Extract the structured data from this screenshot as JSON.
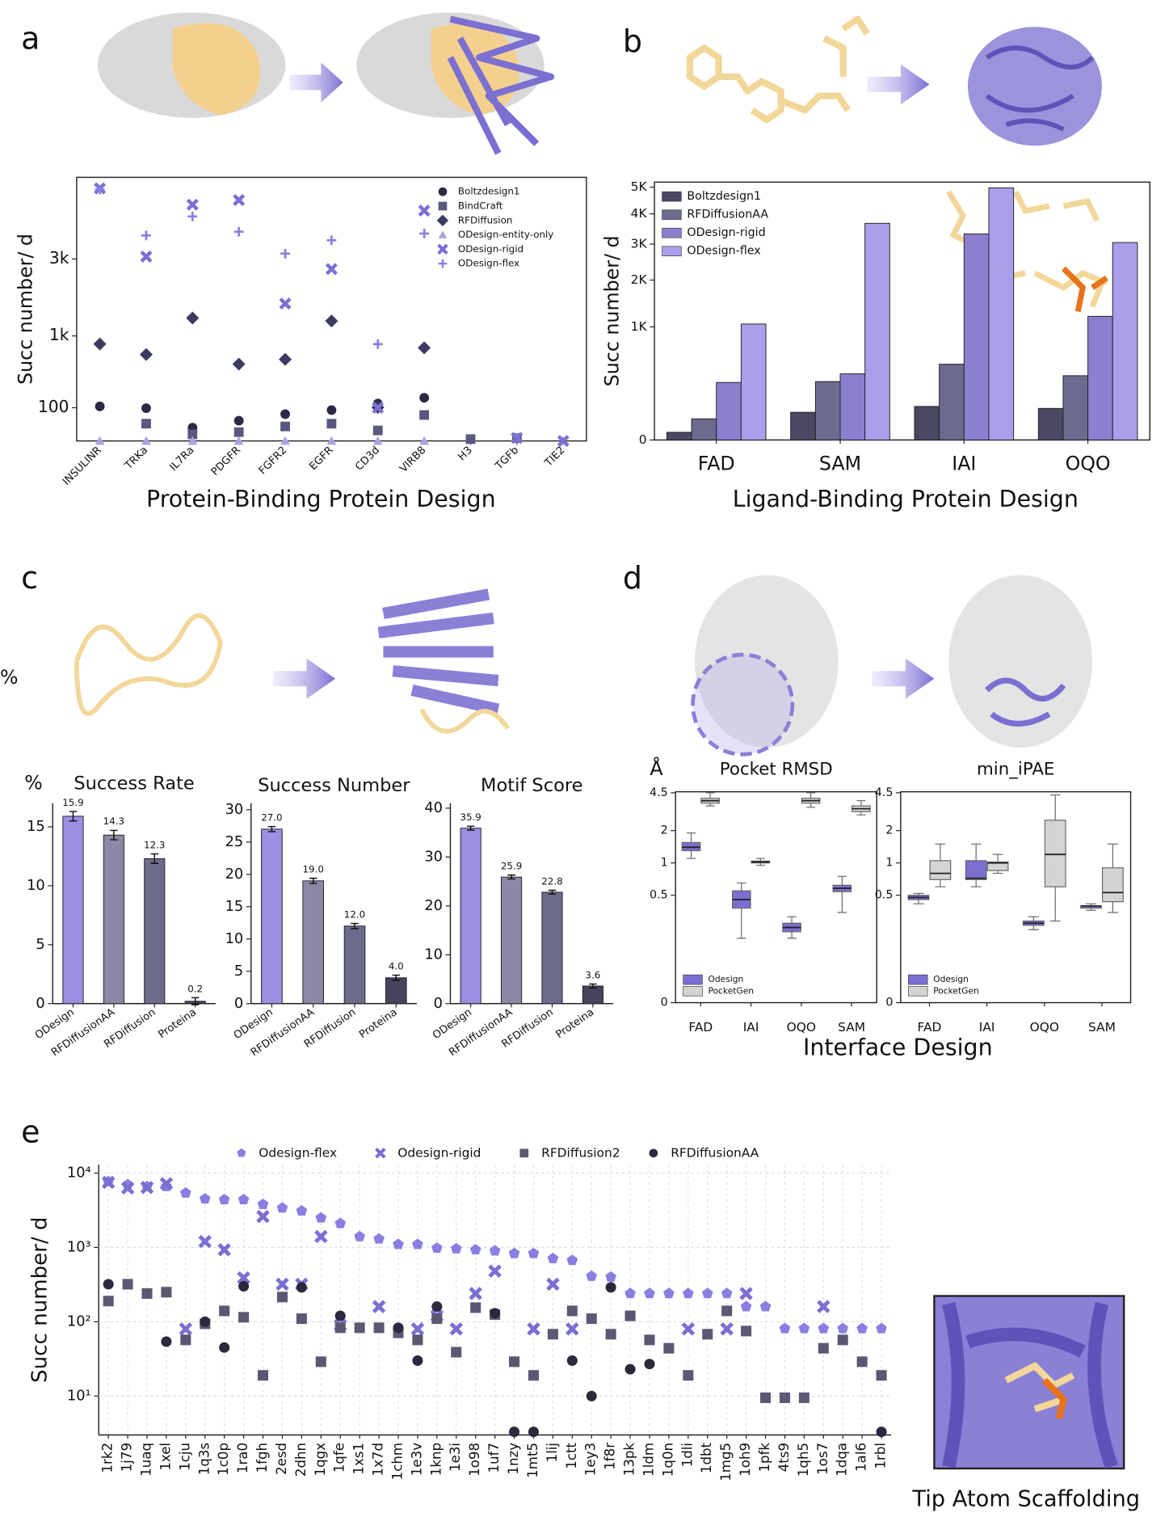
{
  "panels": [
    {
      "label": "a",
      "caption": "Protein-Binding Protein Design"
    },
    {
      "label": "b",
      "caption": "Ligand-Binding Protein Design"
    },
    {
      "label": "c"
    },
    {
      "label": "d",
      "caption": "Interface Design"
    },
    {
      "label": "e",
      "caption": "Tip Atom Scaffolding"
    }
  ],
  "annotations": [
    {
      "text": "%"
    }
  ],
  "chart_data": [
    {
      "type": "scatter",
      "ylabel": "Succ number/ d",
      "yscale": "sqrt",
      "legend": "upper right",
      "categories": [
        "INSULINR",
        "TRKa",
        "IL7Ra",
        "PDGFR",
        "FGFR2",
        "EGFR",
        "CD3d",
        "VIRB8",
        "H3",
        "TGFb",
        "TIE2"
      ],
      "ylim": [
        0,
        6300
      ],
      "yticks": [
        100,
        {
          "value": 1000,
          "label": "1k"
        },
        {
          "value": 3000,
          "label": "3k"
        }
      ],
      "series": [
        {
          "name": "Boltzdesign1",
          "color": "#2b2945",
          "marker": "circle",
          "values": [
            108,
            97,
            16,
            37,
            65,
            86,
            127,
            169,
            null,
            null,
            null
          ]
        },
        {
          "name": "BindCraft",
          "color": "#5a5880",
          "marker": "square",
          "values": [
            null,
            27,
            4,
            7,
            19,
            27,
            10,
            61,
            0.3,
            0.8,
            null
          ]
        },
        {
          "name": "RFDiffusion",
          "color": "#3d3a62",
          "marker": "diamond",
          "values": [
            852,
            677,
            1369,
            535,
            604,
            1305,
            102,
            786,
            null,
            null,
            null
          ]
        },
        {
          "name": "ODesign-entity-only",
          "color": "#aaa3e3",
          "marker": "triangle",
          "values": [
            0,
            0,
            0,
            0,
            0,
            0,
            0,
            0,
            null,
            1,
            0
          ]
        },
        {
          "name": "ODesign-rigid",
          "color": "#7b6fd2",
          "marker": "x",
          "values": [
            5780,
            3080,
            5060,
            5260,
            1710,
            2680,
            100,
            4810,
            null,
            0.8,
            0
          ]
        },
        {
          "name": "ODesign-flex",
          "color": "#8a7ee2",
          "marker": "plus",
          "values": [
            5730,
            3830,
            4570,
            3970,
            3180,
            3650,
            850,
            3900,
            null,
            null,
            null
          ]
        }
      ]
    },
    {
      "type": "bar",
      "ylabel": "Succ number/ d",
      "yscale": "sqrt",
      "legend": "upper left",
      "categories": [
        "FAD",
        "SAM",
        "IAI",
        "OQO"
      ],
      "ylim": [
        0,
        5200
      ],
      "yticks": [
        0,
        {
          "value": 1000,
          "label": "1K"
        },
        {
          "value": 2000,
          "label": "2K"
        },
        {
          "value": 3000,
          "label": "3K"
        },
        {
          "value": 4000,
          "label": "4K"
        },
        {
          "value": 5000,
          "label": "5K"
        }
      ],
      "series": [
        {
          "name": "Boltzdesign1",
          "color": "#4a4862",
          "values": [
            4.6,
            60,
            88,
            78
          ]
        },
        {
          "name": "RFDiffusionAA",
          "color": "#6c6a8e",
          "values": [
            35,
            267,
            449,
            323
          ]
        },
        {
          "name": "ODesign-rigid",
          "color": "#8a80cf",
          "values": [
            259,
            342,
            3322,
            1196
          ]
        },
        {
          "name": "ODesign-flex",
          "color": "#a99fea",
          "values": [
            1052,
            3671,
            4971,
            3050
          ]
        }
      ]
    },
    {
      "type": "bar",
      "title": "Success Rate",
      "ylabel": "%",
      "categories": [
        "ODesign",
        "RFDiffusionAA",
        "RFDiffusion",
        "Proteina"
      ],
      "colors": [
        "#9a8fe0",
        "#8b89a6",
        "#6d6b8c",
        "#45445c"
      ],
      "values": [
        15.9,
        14.3,
        12.3,
        0.2
      ],
      "errors": [
        0.4,
        0.4,
        0.4,
        0.3
      ],
      "ylim": [
        0,
        17
      ],
      "yticks": [
        0,
        5,
        10,
        15
      ]
    },
    {
      "type": "bar",
      "title": "Success Number",
      "categories": [
        "ODesign",
        "RFDiffusionAA",
        "RFDiffusion",
        "Proteina"
      ],
      "colors": [
        "#9a8fe0",
        "#8b89a6",
        "#6d6b8c",
        "#45445c"
      ],
      "values": [
        27,
        19,
        12,
        4
      ],
      "value_labels": [
        "27.0",
        "19.0",
        "12.0",
        "4.0"
      ],
      "errors": [
        0.4,
        0.4,
        0.4,
        0.4
      ],
      "ylim": [
        0,
        31
      ],
      "yticks": [
        0,
        5,
        10,
        15,
        20,
        25,
        30
      ]
    },
    {
      "type": "bar",
      "title": "Motif Score",
      "categories": [
        "ODesign",
        "RFDiffusionAA",
        "RFDiffusion",
        "Proteina"
      ],
      "colors": [
        "#9a8fe0",
        "#8b89a6",
        "#6d6b8c",
        "#45445c"
      ],
      "values": [
        35.9,
        25.9,
        22.8,
        3.6
      ],
      "errors": [
        0.4,
        0.4,
        0.4,
        0.4
      ],
      "ylim": [
        0,
        41
      ],
      "yticks": [
        0,
        10,
        20,
        30,
        40
      ]
    },
    {
      "type": "box",
      "title": "Pocket RMSD",
      "ylabel": "Å",
      "yscale": "symlog",
      "linthresh": 0.5,
      "legend": "lower left",
      "categories": [
        "FAD",
        "IAI",
        "OQO",
        "SAM"
      ],
      "ylim": [
        0,
        4.6
      ],
      "yticks": [
        0,
        0.5,
        1,
        2,
        4.5
      ],
      "series": [
        {
          "name": "Odesign",
          "color": "#7b6fd2",
          "values": [
            {
              "low": 1.1,
              "q1": 1.3,
              "median": 1.4,
              "q3": 1.55,
              "high": 1.9
            },
            {
              "low": 0.3,
              "q1": 0.44,
              "median": 0.48,
              "q3": 0.55,
              "high": 0.65
            },
            {
              "low": 0.3,
              "q1": 0.33,
              "median": 0.35,
              "q3": 0.37,
              "high": 0.4
            },
            {
              "low": 0.42,
              "q1": 0.54,
              "median": 0.58,
              "q3": 0.62,
              "high": 0.75
            }
          ]
        },
        {
          "name": "PocketGen",
          "color": "#d4d4d4",
          "values": [
            {
              "low": 3.4,
              "q1": 3.6,
              "median": 3.8,
              "q3": 4.0,
              "high": 4.5
            },
            {
              "low": 0.95,
              "q1": 1.0,
              "median": 1.02,
              "q3": 1.04,
              "high": 1.1
            },
            {
              "low": 3.3,
              "q1": 3.6,
              "median": 3.8,
              "q3": 4.0,
              "high": 4.5
            },
            {
              "low": 2.8,
              "q1": 3.0,
              "median": 3.2,
              "q3": 3.4,
              "high": 3.8
            }
          ]
        }
      ]
    },
    {
      "type": "box",
      "title": "min_iPAE",
      "yscale": "symlog",
      "linthresh": 0.5,
      "legend": "lower left",
      "categories": [
        "FAD",
        "IAI",
        "OQO",
        "SAM"
      ],
      "ylim": [
        0,
        4.6
      ],
      "yticks": [
        0,
        0.5,
        1,
        2,
        4.5
      ],
      "series": [
        {
          "name": "Odesign",
          "color": "#7b6fd2",
          "values": [
            {
              "low": 0.46,
              "q1": 0.48,
              "median": 0.49,
              "q3": 0.5,
              "high": 0.52
            },
            {
              "low": 0.6,
              "q1": 0.7,
              "median": 0.72,
              "q3": 1.05,
              "high": 1.5
            },
            {
              "low": 0.34,
              "q1": 0.36,
              "median": 0.37,
              "q3": 0.38,
              "high": 0.4
            },
            {
              "low": 0.43,
              "q1": 0.44,
              "median": 0.45,
              "q3": 0.45,
              "high": 0.46
            }
          ]
        },
        {
          "name": "PocketGen",
          "color": "#d4d4d4",
          "values": [
            {
              "low": 0.6,
              "q1": 0.7,
              "median": 0.8,
              "q3": 1.05,
              "high": 1.5
            },
            {
              "low": 0.8,
              "q1": 0.85,
              "median": 1.0,
              "q3": 1.02,
              "high": 1.2
            },
            {
              "low": 0.38,
              "q1": 0.6,
              "median": 1.2,
              "q3": 2.5,
              "high": 4.3
            },
            {
              "low": 0.42,
              "q1": 0.47,
              "median": 0.53,
              "q3": 0.9,
              "high": 1.5
            }
          ]
        }
      ]
    },
    {
      "type": "scatter",
      "ylabel": "Succ number/ d",
      "yscale": "log",
      "legend": "top",
      "grid": true,
      "categories": [
        "1rk2",
        "1j79",
        "1uaq",
        "1xel",
        "1cju",
        "1q3s",
        "1c0p",
        "1ra0",
        "1fgh",
        "2esd",
        "2dhn",
        "1qgx",
        "1qfe",
        "1xs1",
        "1x7d",
        "1chm",
        "1e3v",
        "1knp",
        "1e3i",
        "1o98",
        "1uf7",
        "1nzy",
        "1mt5",
        "1lij",
        "1ctt",
        "1ey3",
        "1f8r",
        "13pk",
        "1ldm",
        "1q0n",
        "1dli",
        "1dbt",
        "1mg5",
        "1oh9",
        "1pfk",
        "4ts9",
        "1qh5",
        "1os7",
        "1dqa",
        "1al6",
        "1rbl"
      ],
      "ylim": [
        3,
        13000
      ],
      "yticks": [
        {
          "value": 10,
          "label": "10¹"
        },
        {
          "value": 100,
          "label": "10²"
        },
        {
          "value": 1000,
          "label": "10³"
        },
        {
          "value": 10000,
          "label": "10⁴"
        }
      ],
      "series": [
        {
          "name": "Odesign-flex",
          "color": "#8a7ee2",
          "marker": "pentagon",
          "values": [
            7700,
            7000,
            6600,
            6600,
            5400,
            4500,
            4400,
            4400,
            3800,
            3400,
            3100,
            2500,
            2100,
            1400,
            1300,
            1100,
            1100,
            980,
            960,
            930,
            900,
            830,
            830,
            710,
            670,
            410,
            400,
            240,
            240,
            240,
            240,
            240,
            240,
            160,
            160,
            81,
            81,
            81,
            81,
            81,
            81
          ]
        },
        {
          "name": "Odesign-rigid",
          "color": "#7b6fd2",
          "marker": "x",
          "values": [
            7500,
            6300,
            6400,
            7200,
            80,
            1200,
            930,
            390,
            2600,
            320,
            320,
            1400,
            90,
            null,
            160,
            null,
            80,
            120,
            80,
            240,
            480,
            null,
            80,
            320,
            80,
            null,
            null,
            null,
            null,
            null,
            80,
            null,
            80,
            240,
            null,
            null,
            null,
            160,
            null,
            null,
            null
          ]
        },
        {
          "name": "RFDiffusion2",
          "color": "#5a5872",
          "marker": "square",
          "values": [
            190,
            320,
            240,
            250,
            57,
            94,
            140,
            115,
            19,
            215,
            110,
            29,
            83,
            83,
            83,
            71,
            57,
            110,
            39,
            155,
            125,
            29,
            19,
            68,
            140,
            110,
            68,
            120,
            57,
            44,
            19,
            68,
            140,
            75,
            9.5,
            9.5,
            9.5,
            44,
            57,
            29,
            19
          ]
        },
        {
          "name": "RFDiffusionAA",
          "color": "#2b2a3c",
          "marker": "circle",
          "values": [
            320,
            null,
            null,
            54,
            null,
            100,
            45,
            300,
            null,
            null,
            290,
            null,
            120,
            null,
            null,
            83,
            30,
            160,
            null,
            null,
            130,
            3.3,
            3.3,
            null,
            30,
            10,
            290,
            23,
            27,
            null,
            null,
            null,
            null,
            null,
            null,
            null,
            null,
            null,
            null,
            null,
            3.3
          ]
        }
      ]
    }
  ]
}
